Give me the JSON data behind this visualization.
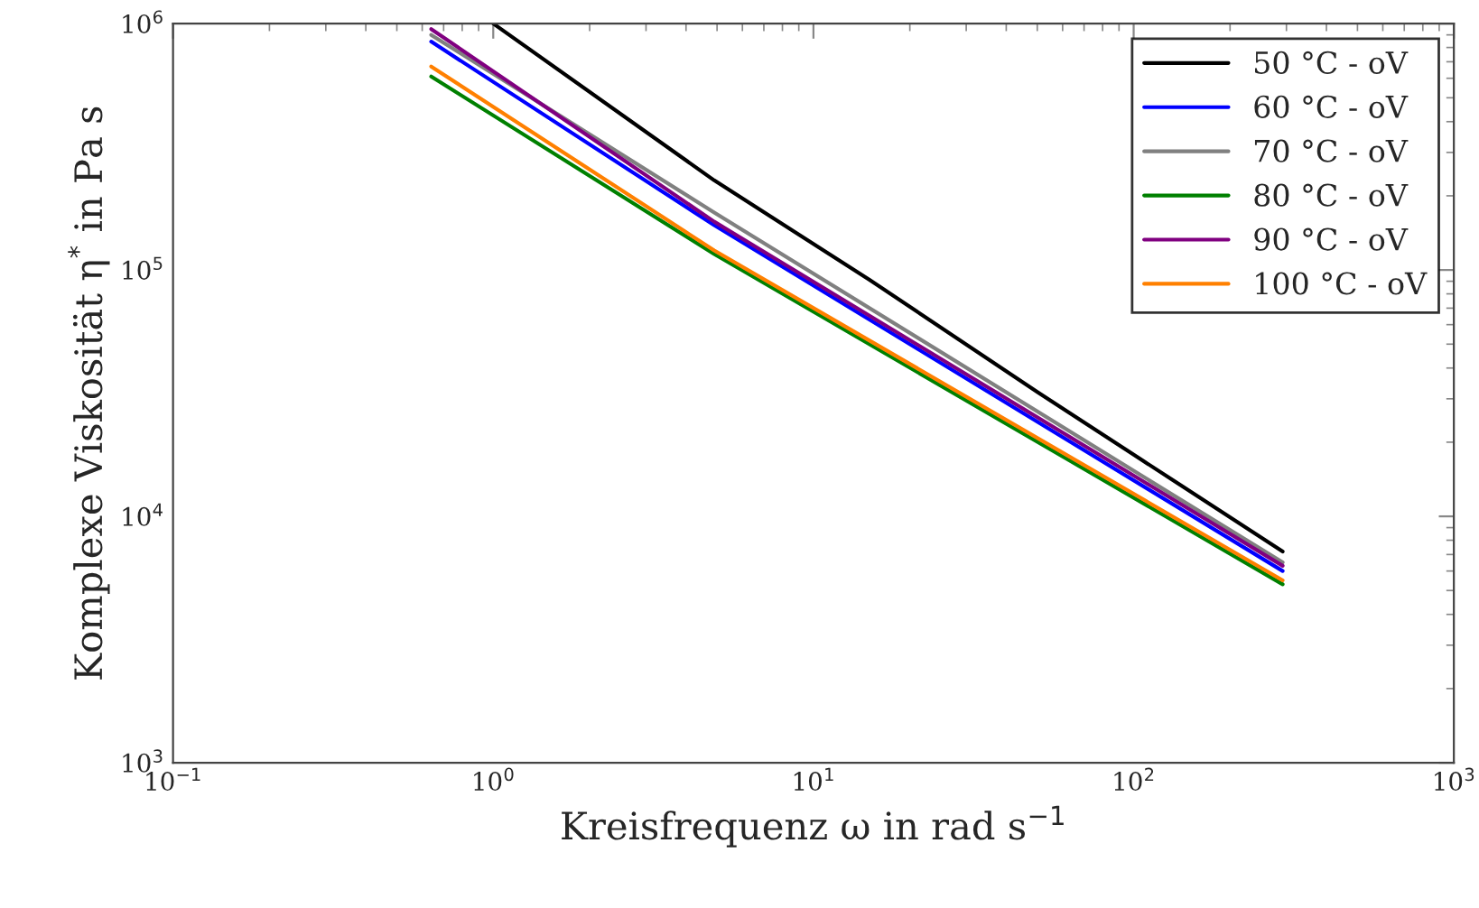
{
  "chart_data": {
    "type": "line",
    "log": "xy",
    "xlabel": "Kreisfrequenz ω in rad s$^{−1}$",
    "ylabel": "Komplexe Viskosität η$^{*}$ in Pa s",
    "xlim": [
      0.1,
      1000
    ],
    "ylim": [
      1000,
      1000000
    ],
    "xticks": [
      {
        "value": 0.1,
        "label": "10$^{−1}$"
      },
      {
        "value": 1,
        "label": "10$^{0}$"
      },
      {
        "value": 10,
        "label": "10$^{1}$"
      },
      {
        "value": 100,
        "label": "10$^{2}$"
      },
      {
        "value": 1000,
        "label": "10$^{3}$"
      }
    ],
    "yticks": [
      {
        "value": 1000,
        "label": "10$^{3}$"
      },
      {
        "value": 10000,
        "label": "10$^{4}$"
      },
      {
        "value": 100000,
        "label": "10$^{5}$"
      },
      {
        "value": 1000000,
        "label": "10$^{6}$"
      }
    ],
    "grid": false,
    "legend": "top right",
    "series": [
      {
        "name": "50 °C - oV",
        "color": "#000000",
        "x": [
          1.0,
          4.9,
          15,
          50,
          134,
          292
        ],
        "values": [
          1000000,
          231000,
          91000,
          32000,
          13900,
          7200
        ]
      },
      {
        "name": "60 °C - oV",
        "color": "#0000ff",
        "x": [
          0.64,
          4.9,
          292
        ],
        "values": [
          845000,
          152000,
          6000
        ]
      },
      {
        "name": "70 °C - oV",
        "color": "#808080",
        "x": [
          0.64,
          4.9,
          292
        ],
        "values": [
          900000,
          171000,
          6500
        ]
      },
      {
        "name": "80 °C - oV",
        "color": "#008000",
        "x": [
          0.64,
          4.9,
          292
        ],
        "values": [
          610000,
          116000,
          5300
        ]
      },
      {
        "name": "90 °C - oV",
        "color": "#800080",
        "x": [
          0.64,
          4.9,
          292
        ],
        "values": [
          950000,
          157000,
          6300
        ]
      },
      {
        "name": "100 °C - oV",
        "color": "#ff8000",
        "x": [
          0.64,
          4.9,
          292
        ],
        "values": [
          670000,
          120000,
          5500
        ]
      }
    ]
  }
}
